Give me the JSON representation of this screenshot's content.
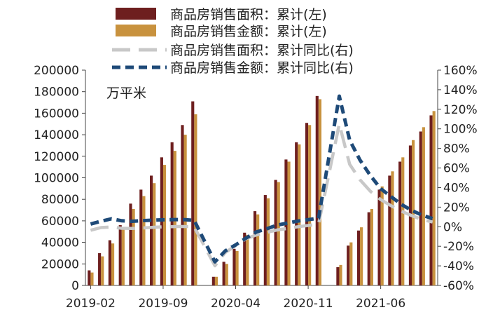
{
  "chart_data": {
    "type": "bar",
    "unit_label": "万平米",
    "x_tick_labels": [
      "2019-02",
      "2019-09",
      "2020-04",
      "2020-11",
      "2021-06"
    ],
    "y_left_ticks": [
      "0",
      "20000",
      "40000",
      "60000",
      "80000",
      "100000",
      "120000",
      "140000",
      "160000",
      "180000",
      "200000"
    ],
    "y_right_ticks": [
      "-60%",
      "-40%",
      "-20%",
      "0%",
      "20%",
      "40%",
      "60%",
      "80%",
      "100%",
      "120%",
      "140%",
      "160%"
    ],
    "ylim_left": [
      0,
      200000
    ],
    "ylim_right": [
      -60,
      160
    ],
    "legend_position": "top",
    "grid": false,
    "months": [
      "2019-02",
      "2019-03",
      "2019-04",
      "2019-05",
      "2019-06",
      "2019-07",
      "2019-08",
      "2019-09",
      "2019-10",
      "2019-11",
      "2019-12",
      "2020-02",
      "2020-03",
      "2020-04",
      "2020-05",
      "2020-06",
      "2020-07",
      "2020-08",
      "2020-09",
      "2020-10",
      "2020-11",
      "2020-12",
      "2021-02",
      "2021-03",
      "2021-04",
      "2021-05",
      "2021-06",
      "2021-07",
      "2021-08",
      "2021-09",
      "2021-10",
      "2021-11"
    ],
    "series": [
      {
        "name": "商品房销售面积：累计(左)",
        "kind": "bar",
        "axis": "left",
        "color": "#6e1f1f",
        "values": [
          14000,
          30000,
          42000,
          56000,
          76000,
          89000,
          102000,
          119000,
          133000,
          149000,
          171000,
          8000,
          22000,
          34000,
          49000,
          69000,
          84000,
          98000,
          117000,
          133000,
          151000,
          176000,
          17000,
          37000,
          51000,
          68000,
          89000,
          102000,
          115000,
          130000,
          143000,
          158000
        ]
      },
      {
        "name": "商品房销售金额：累计(左)",
        "kind": "bar",
        "axis": "left",
        "color": "#c8923e",
        "values": [
          12000,
          27000,
          39000,
          53000,
          71000,
          83000,
          95000,
          112000,
          125000,
          140000,
          159000,
          8000,
          20000,
          32000,
          47000,
          66000,
          81000,
          96000,
          115000,
          131000,
          149000,
          173000,
          19000,
          40000,
          54000,
          71000,
          92000,
          106000,
          119000,
          135000,
          147000,
          162000
        ]
      },
      {
        "name": "商品房销售面积：累计同比(右)",
        "kind": "line",
        "axis": "right",
        "color": "#c8c8c8",
        "values": [
          -3.6,
          -0.9,
          -0.3,
          -1.6,
          -1.8,
          -1.3,
          -0.6,
          -0.1,
          0.1,
          0.2,
          -0.1,
          -39.9,
          -26.3,
          -19.3,
          -12.3,
          -8.4,
          -5.8,
          -3.3,
          -1.8,
          0.0,
          1.3,
          2.6,
          104.9,
          63.8,
          48.1,
          36.3,
          27.7,
          21.5,
          15.9,
          11.3,
          7.3,
          4.8
        ]
      },
      {
        "name": "商品房销售金额：累计同比(右)",
        "kind": "line",
        "axis": "right",
        "color": "#1e4a78",
        "values": [
          2.8,
          5.6,
          8.1,
          6.1,
          5.6,
          6.2,
          6.7,
          7.1,
          7.3,
          7.3,
          6.5,
          -35.9,
          -24.7,
          -18.6,
          -11.6,
          -5.4,
          -2.1,
          1.6,
          3.7,
          5.8,
          7.2,
          8.7,
          133.4,
          88.5,
          68.2,
          52.4,
          38.9,
          30.7,
          22.8,
          16.6,
          11.8,
          8.4
        ]
      }
    ]
  }
}
